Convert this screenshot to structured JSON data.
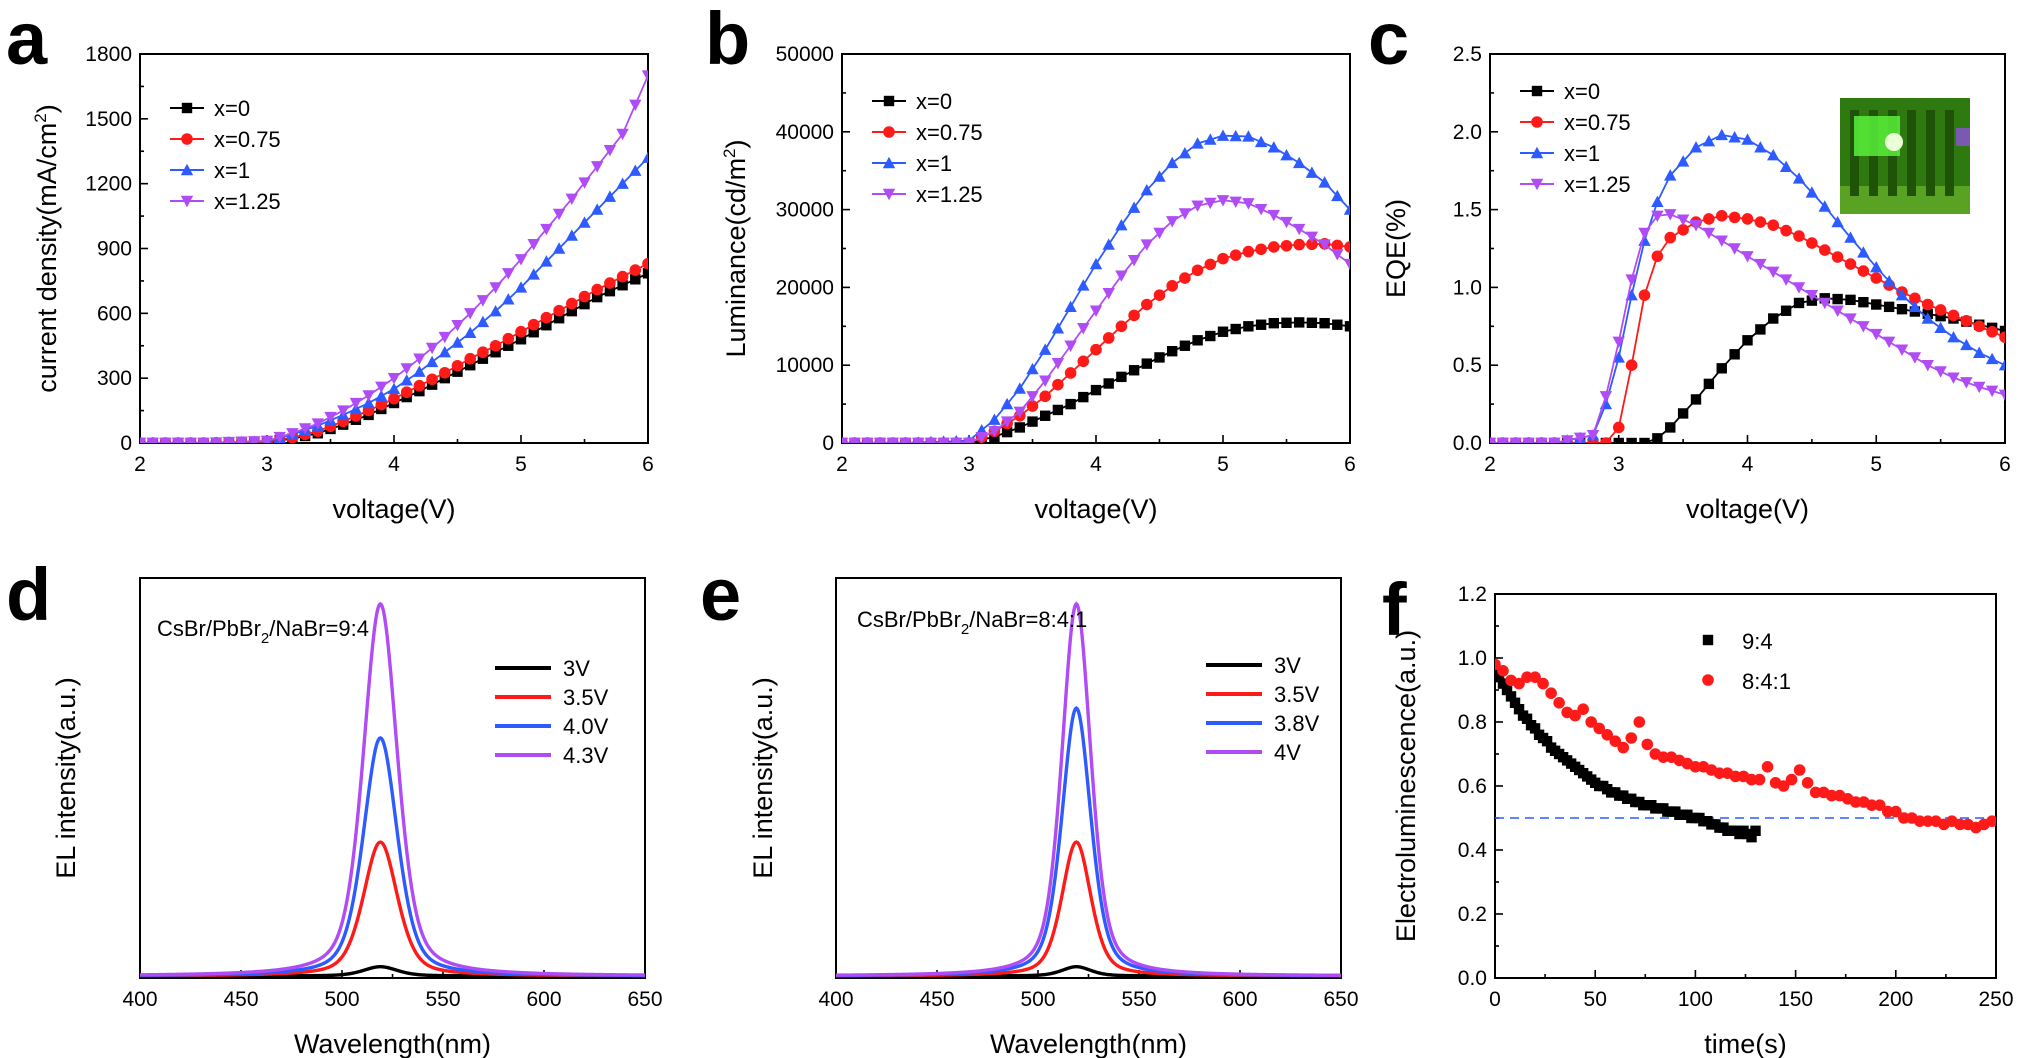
{
  "figure": {
    "panels": [
      "a",
      "b",
      "c",
      "d",
      "e",
      "f"
    ],
    "inset_description": "photo of green-emitting LED device"
  },
  "chart_data": [
    {
      "id": "a",
      "type": "line",
      "xlabel": "voltage(V)",
      "ylabel": "current density(mA/cm2)",
      "ylabel_parts": [
        "current density(mA/cm",
        "2",
        ")"
      ],
      "xlim": [
        2,
        6
      ],
      "ylim": [
        0,
        1800
      ],
      "xticks": [
        2,
        3,
        4,
        5,
        6
      ],
      "yticks": [
        0,
        300,
        600,
        900,
        1200,
        1500,
        1800
      ],
      "legend_position": "top-left",
      "x": [
        2.0,
        2.5,
        3.0,
        3.2,
        3.4,
        3.6,
        3.8,
        4.0,
        4.2,
        4.4,
        4.6,
        4.8,
        5.0,
        5.2,
        5.4,
        5.6,
        5.8,
        6.0
      ],
      "series": [
        {
          "name": "x=0",
          "color": "#000000",
          "marker": "square",
          "values": [
            0,
            0,
            5,
            20,
            45,
            85,
            130,
            185,
            240,
            300,
            360,
            420,
            480,
            545,
            610,
            675,
            730,
            785
          ]
        },
        {
          "name": "x=0.75",
          "color": "#ff1a1a",
          "marker": "circle",
          "values": [
            0,
            0,
            5,
            25,
            55,
            100,
            150,
            205,
            265,
            325,
            390,
            450,
            515,
            580,
            645,
            710,
            770,
            830
          ]
        },
        {
          "name": "x=1",
          "color": "#2d5bff",
          "marker": "triangle-up",
          "values": [
            0,
            0,
            8,
            40,
            80,
            130,
            185,
            250,
            330,
            420,
            510,
            610,
            720,
            840,
            960,
            1080,
            1200,
            1320
          ]
        },
        {
          "name": "x=1.25",
          "color": "#b04cf5",
          "marker": "triangle-down",
          "values": [
            0,
            0,
            10,
            45,
            90,
            150,
            220,
            300,
            390,
            490,
            600,
            720,
            850,
            990,
            1130,
            1280,
            1430,
            1700
          ]
        }
      ]
    },
    {
      "id": "b",
      "type": "line",
      "xlabel": "voltage(V)",
      "ylabel": "Luminance(cd/m2)",
      "ylabel_parts": [
        "Luminance(cd/m",
        "2",
        ")"
      ],
      "xlim": [
        2,
        6
      ],
      "ylim": [
        0,
        50000
      ],
      "xticks": [
        2,
        3,
        4,
        5,
        6
      ],
      "yticks": [
        0,
        10000,
        20000,
        30000,
        40000,
        50000
      ],
      "legend_position": "top-left",
      "x": [
        2.0,
        2.5,
        3.0,
        3.2,
        3.4,
        3.6,
        3.8,
        4.0,
        4.2,
        4.4,
        4.6,
        4.8,
        5.0,
        5.2,
        5.4,
        5.6,
        5.8,
        6.0
      ],
      "series": [
        {
          "name": "x=0",
          "color": "#000000",
          "marker": "square",
          "values": [
            0,
            0,
            0,
            800,
            2000,
            3500,
            5000,
            6800,
            8500,
            10200,
            11800,
            13200,
            14300,
            15000,
            15400,
            15500,
            15400,
            15000
          ]
        },
        {
          "name": "x=0.75",
          "color": "#ff1a1a",
          "marker": "circle",
          "values": [
            0,
            0,
            0,
            1500,
            3500,
            6000,
            9000,
            12000,
            15000,
            17800,
            20200,
            22200,
            23700,
            24600,
            25200,
            25500,
            25600,
            25200
          ]
        },
        {
          "name": "x=1",
          "color": "#2d5bff",
          "marker": "triangle-up",
          "values": [
            0,
            0,
            300,
            3000,
            7000,
            12000,
            17500,
            23000,
            28000,
            32500,
            36000,
            38500,
            39500,
            39400,
            38000,
            36000,
            33500,
            30000
          ]
        },
        {
          "name": "x=1.25",
          "color": "#b04cf5",
          "marker": "triangle-down",
          "values": [
            0,
            0,
            0,
            1500,
            4000,
            8000,
            12500,
            17000,
            21500,
            25500,
            28500,
            30500,
            31200,
            30800,
            29300,
            27500,
            25500,
            23000
          ]
        }
      ]
    },
    {
      "id": "c",
      "type": "line",
      "xlabel": "voltage(V)",
      "ylabel": "EQE(%)",
      "xlim": [
        2,
        6
      ],
      "ylim": [
        0,
        2.5
      ],
      "xticks": [
        2,
        3,
        4,
        5,
        6
      ],
      "yticks": [
        0.0,
        0.5,
        1.0,
        1.5,
        2.0,
        2.5
      ],
      "ytick_labels": [
        "0.0",
        "0.5",
        "1.0",
        "1.5",
        "2.0",
        "2.5"
      ],
      "legend_position": "top-left",
      "x": [
        2.0,
        2.5,
        2.8,
        2.9,
        3.0,
        3.1,
        3.2,
        3.3,
        3.4,
        3.6,
        3.8,
        4.0,
        4.2,
        4.4,
        4.6,
        4.8,
        5.0,
        5.2,
        5.4,
        5.6,
        5.8,
        6.0
      ],
      "series": [
        {
          "name": "x=0",
          "color": "#000000",
          "marker": "square",
          "values": [
            0,
            0,
            0,
            0,
            0,
            0,
            0,
            0.03,
            0.1,
            0.28,
            0.48,
            0.66,
            0.8,
            0.9,
            0.93,
            0.92,
            0.89,
            0.86,
            0.83,
            0.8,
            0.76,
            0.72
          ]
        },
        {
          "name": "x=0.75",
          "color": "#ff1a1a",
          "marker": "circle",
          "values": [
            0,
            0,
            0,
            0,
            0.1,
            0.5,
            0.95,
            1.2,
            1.32,
            1.42,
            1.46,
            1.44,
            1.4,
            1.33,
            1.24,
            1.15,
            1.06,
            0.97,
            0.89,
            0.82,
            0.75,
            0.68
          ]
        },
        {
          "name": "x=1",
          "color": "#2d5bff",
          "marker": "triangle-up",
          "values": [
            0,
            0,
            0.05,
            0.25,
            0.55,
            0.95,
            1.3,
            1.55,
            1.72,
            1.9,
            1.98,
            1.95,
            1.85,
            1.7,
            1.52,
            1.32,
            1.13,
            0.95,
            0.8,
            0.68,
            0.58,
            0.5
          ]
        },
        {
          "name": "x=1.25",
          "color": "#b04cf5",
          "marker": "triangle-down",
          "values": [
            0,
            0,
            0.05,
            0.3,
            0.65,
            1.05,
            1.35,
            1.46,
            1.47,
            1.4,
            1.3,
            1.2,
            1.1,
            1.0,
            0.9,
            0.8,
            0.7,
            0.6,
            0.5,
            0.42,
            0.36,
            0.31
          ]
        }
      ]
    },
    {
      "id": "d",
      "type": "line",
      "xlabel": "Wavelength(nm)",
      "ylabel": "EL intensity(a.u.)",
      "xlim": [
        400,
        650
      ],
      "ylim": [
        0,
        1.0
      ],
      "xticks": [
        400,
        450,
        500,
        550,
        600,
        650
      ],
      "yticks": [],
      "legend_position": "top-right",
      "annotation": "CsBr/PbBr2/NaBr=9:4",
      "annotation_parts": [
        "CsBr/PbBr",
        "2",
        "/NaBr=9:4"
      ],
      "peak_nm": 519,
      "fwhm_nm": 20,
      "series": [
        {
          "name": "3V",
          "color": "#000000",
          "peak": 0.025
        },
        {
          "name": "3.5V",
          "color": "#ff1a1a",
          "peak": 0.36
        },
        {
          "name": "4.0V",
          "color": "#2d5bff",
          "peak": 0.64
        },
        {
          "name": "4.3V",
          "color": "#b04cf5",
          "peak": 1.0
        }
      ]
    },
    {
      "id": "e",
      "type": "line",
      "xlabel": "Wavelength(nm)",
      "ylabel": "EL intensity(a.u.)",
      "xlim": [
        400,
        650
      ],
      "ylim": [
        0,
        1.0
      ],
      "xticks": [
        400,
        450,
        500,
        550,
        600,
        650
      ],
      "yticks": [],
      "legend_position": "top-right",
      "annotation": "CsBr/PbBr2/NaBr=8:4:1",
      "annotation_parts": [
        "CsBr/PbBr",
        "2",
        "/NaBr=8:4:1"
      ],
      "peak_nm": 519,
      "fwhm_nm": 17,
      "series": [
        {
          "name": "3V",
          "color": "#000000",
          "peak": 0.025
        },
        {
          "name": "3.5V",
          "color": "#ff1a1a",
          "peak": 0.36
        },
        {
          "name": "3.8V",
          "color": "#2d5bff",
          "peak": 0.72
        },
        {
          "name": "4V",
          "color": "#b04cf5",
          "peak": 1.0
        }
      ]
    },
    {
      "id": "f",
      "type": "scatter",
      "xlabel": "time(s)",
      "ylabel": "Electroluminescence(a.u.)",
      "xlim": [
        0,
        250
      ],
      "ylim": [
        0,
        1.2
      ],
      "xticks": [
        0,
        50,
        100,
        150,
        200,
        250
      ],
      "yticks": [
        0.0,
        0.2,
        0.4,
        0.6,
        0.8,
        1.0,
        1.2
      ],
      "ytick_labels": [
        "0.0",
        "0.2",
        "0.4",
        "0.6",
        "0.8",
        "1.0",
        "1.2"
      ],
      "legend_position": "top-right",
      "reference_line": {
        "y": 0.5,
        "style": "dashed",
        "color": "#2d5bff"
      },
      "series": [
        {
          "name": "9:4",
          "color": "#000000",
          "marker": "square",
          "x": [
            0,
            2,
            4,
            6,
            8,
            10,
            12,
            14,
            16,
            18,
            20,
            22,
            24,
            26,
            28,
            30,
            32,
            34,
            36,
            38,
            40,
            42,
            44,
            46,
            48,
            50,
            52,
            54,
            56,
            58,
            60,
            62,
            64,
            66,
            68,
            70,
            72,
            74,
            76,
            78,
            80,
            82,
            84,
            86,
            88,
            90,
            92,
            94,
            96,
            98,
            100,
            102,
            104,
            106,
            108,
            110,
            112,
            114,
            116,
            118,
            120,
            122,
            124,
            126,
            128,
            130
          ],
          "values": [
            0.96,
            0.94,
            0.92,
            0.9,
            0.88,
            0.86,
            0.84,
            0.82,
            0.81,
            0.79,
            0.78,
            0.76,
            0.75,
            0.74,
            0.72,
            0.71,
            0.7,
            0.69,
            0.68,
            0.67,
            0.66,
            0.65,
            0.64,
            0.63,
            0.62,
            0.61,
            0.6,
            0.6,
            0.59,
            0.58,
            0.58,
            0.57,
            0.57,
            0.56,
            0.56,
            0.55,
            0.55,
            0.54,
            0.54,
            0.54,
            0.53,
            0.53,
            0.53,
            0.52,
            0.52,
            0.52,
            0.51,
            0.51,
            0.51,
            0.5,
            0.5,
            0.5,
            0.49,
            0.49,
            0.48,
            0.48,
            0.47,
            0.47,
            0.46,
            0.46,
            0.46,
            0.45,
            0.46,
            0.45,
            0.44,
            0.46
          ]
        },
        {
          "name": "8:4:1",
          "color": "#ff1a1a",
          "marker": "circle",
          "x": [
            0,
            4,
            8,
            12,
            16,
            20,
            24,
            28,
            32,
            36,
            40,
            44,
            48,
            52,
            56,
            60,
            64,
            68,
            72,
            76,
            80,
            84,
            88,
            92,
            96,
            100,
            104,
            108,
            112,
            116,
            120,
            124,
            128,
            132,
            136,
            140,
            144,
            148,
            152,
            156,
            160,
            164,
            168,
            172,
            176,
            180,
            184,
            188,
            192,
            196,
            200,
            204,
            208,
            212,
            216,
            220,
            224,
            228,
            232,
            236,
            240,
            244,
            248
          ],
          "values": [
            0.98,
            0.96,
            0.93,
            0.92,
            0.94,
            0.94,
            0.92,
            0.89,
            0.86,
            0.83,
            0.82,
            0.84,
            0.8,
            0.78,
            0.76,
            0.74,
            0.72,
            0.75,
            0.8,
            0.73,
            0.7,
            0.69,
            0.69,
            0.68,
            0.67,
            0.66,
            0.66,
            0.65,
            0.64,
            0.64,
            0.63,
            0.63,
            0.62,
            0.62,
            0.66,
            0.61,
            0.6,
            0.62,
            0.65,
            0.61,
            0.58,
            0.58,
            0.57,
            0.57,
            0.56,
            0.55,
            0.55,
            0.54,
            0.54,
            0.52,
            0.52,
            0.5,
            0.5,
            0.49,
            0.49,
            0.49,
            0.48,
            0.49,
            0.48,
            0.48,
            0.47,
            0.48,
            0.49
          ]
        }
      ]
    }
  ]
}
